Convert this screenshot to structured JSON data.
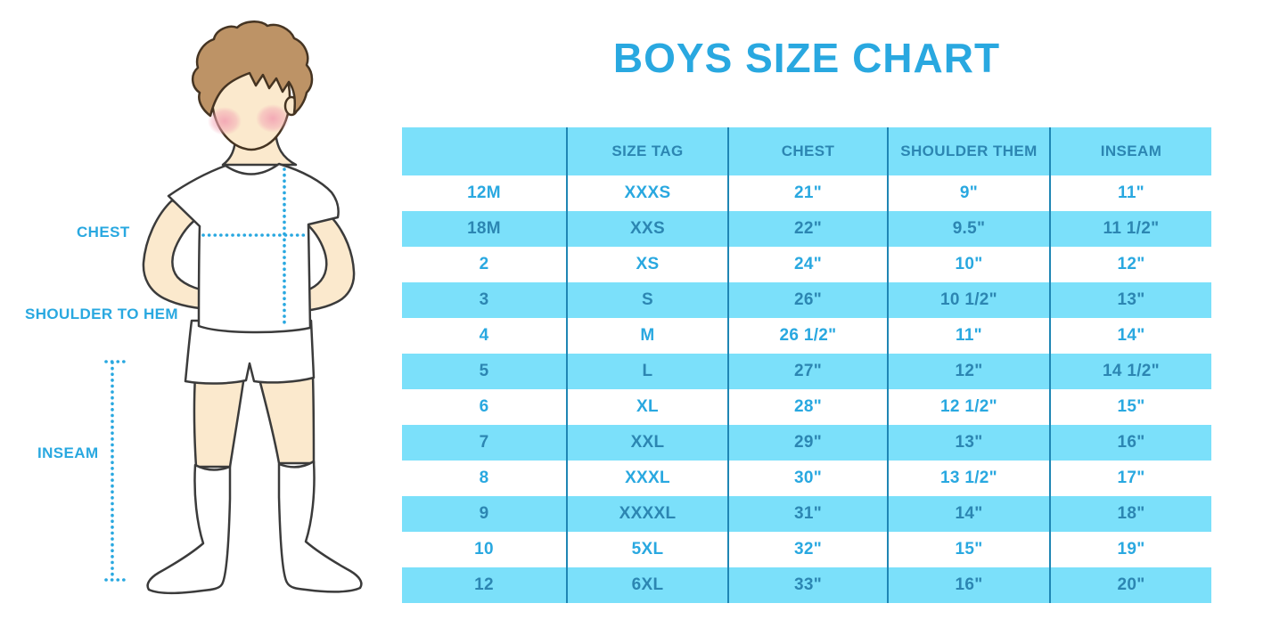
{
  "title": "BOYS SIZE CHART",
  "figure": {
    "chest_label": "CHEST",
    "shoulder_to_hem_label": "SHOULDER TO HEM",
    "inseam_label": "INSEAM"
  },
  "chart_data": {
    "type": "table",
    "title": "BOYS SIZE CHART",
    "columns": [
      "",
      "SIZE TAG",
      "CHEST",
      "SHOULDER THEM",
      "INSEAM"
    ],
    "rows": [
      [
        "12M",
        "XXXS",
        "21\"",
        "9\"",
        "11\""
      ],
      [
        "18M",
        "XXS",
        "22\"",
        "9.5\"",
        "11 1/2\""
      ],
      [
        "2",
        "XS",
        "24\"",
        "10\"",
        "12\""
      ],
      [
        "3",
        "S",
        "26\"",
        "10 1/2\"",
        "13\""
      ],
      [
        "4",
        "M",
        "26 1/2\"",
        "11\"",
        "14\""
      ],
      [
        "5",
        "L",
        "27\"",
        "12\"",
        "14 1/2\""
      ],
      [
        "6",
        "XL",
        "28\"",
        "12 1/2\"",
        "15\""
      ],
      [
        "7",
        "XXL",
        "29\"",
        "13\"",
        "16\""
      ],
      [
        "8",
        "XXXL",
        "30\"",
        "13 1/2\"",
        "17\""
      ],
      [
        "9",
        "XXXXL",
        "31\"",
        "14\"",
        "18\""
      ],
      [
        "10",
        "5XL",
        "32\"",
        "15\"",
        "19\""
      ],
      [
        "12",
        "6XL",
        "33\"",
        "16\"",
        "20\""
      ]
    ],
    "layout": "alternating row bands starting with white, light-blue header row, vertical column dividers only"
  },
  "colors": {
    "accent_blue": "#29A8E0",
    "band_blue": "#7BE0FA",
    "dark_cell_text": "#2C86B2",
    "divider_blue": "#1F86B4",
    "skin": "#FBE9CD",
    "hair": "#BD9366",
    "cheek_pink": "#F2A3B3"
  }
}
